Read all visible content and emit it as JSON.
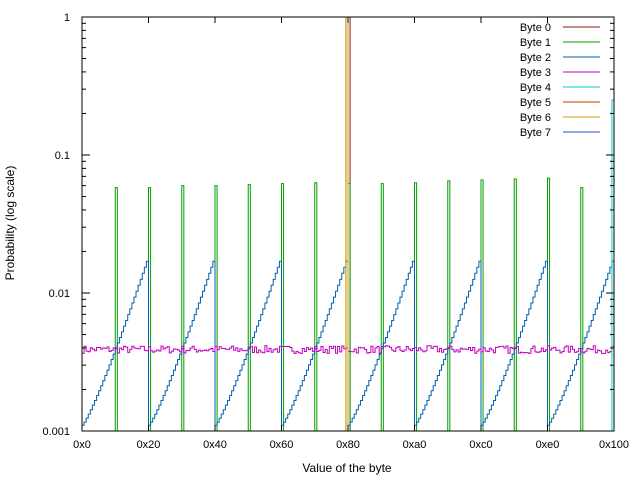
{
  "chart_data": {
    "type": "line",
    "step": true,
    "xlabel": "Value of the byte",
    "ylabel": "Probability (log scale)",
    "xlim": [
      0,
      256
    ],
    "ylim": [
      0.001,
      1
    ],
    "yscale": "log",
    "grid": false,
    "legend_position": "top-right",
    "x_ticks": [
      {
        "value": 0,
        "label": "0x0"
      },
      {
        "value": 32,
        "label": "0x20"
      },
      {
        "value": 64,
        "label": "0x40"
      },
      {
        "value": 96,
        "label": "0x60"
      },
      {
        "value": 128,
        "label": "0x80"
      },
      {
        "value": 160,
        "label": "0xa0"
      },
      {
        "value": 192,
        "label": "0xc0"
      },
      {
        "value": 224,
        "label": "0xe0"
      },
      {
        "value": 256,
        "label": "0x100"
      }
    ],
    "y_ticks": [
      {
        "value": 1,
        "label": "1"
      },
      {
        "value": 0.1,
        "label": "0.1"
      },
      {
        "value": 0.01,
        "label": "0.01"
      },
      {
        "value": 0.001,
        "label": "0.001"
      }
    ],
    "series": [
      {
        "name": "Byte 0",
        "color": "#8b1a0e",
        "description": "single spike",
        "spikes": [
          {
            "x": 128,
            "y": 1.0
          }
        ]
      },
      {
        "name": "Byte 1",
        "color": "#00a000",
        "description": "spikes every 0x10 starting at 0x10",
        "spikes": [
          {
            "x": 16,
            "y": 0.058
          },
          {
            "x": 32,
            "y": 0.058
          },
          {
            "x": 48,
            "y": 0.06
          },
          {
            "x": 64,
            "y": 0.06
          },
          {
            "x": 80,
            "y": 0.061
          },
          {
            "x": 96,
            "y": 0.062
          },
          {
            "x": 112,
            "y": 0.063
          },
          {
            "x": 128,
            "y": 0.062
          },
          {
            "x": 144,
            "y": 0.062
          },
          {
            "x": 160,
            "y": 0.063
          },
          {
            "x": 176,
            "y": 0.065
          },
          {
            "x": 192,
            "y": 0.066
          },
          {
            "x": 208,
            "y": 0.067
          },
          {
            "x": 224,
            "y": 0.068
          },
          {
            "x": 240,
            "y": 0.058
          }
        ]
      },
      {
        "name": "Byte 2",
        "color": "#0060ad",
        "description": "sawtooth: rises from ~0.0011 to ~0.017 across each 0x20 block",
        "period": 32,
        "ramp_min": 0.0011,
        "ramp_max": 0.017
      },
      {
        "name": "Byte 3",
        "color": "#c000c0",
        "description": "nearly uniform noise around 0.0039",
        "level": 0.0039,
        "noise": 0.00025
      },
      {
        "name": "Byte 4",
        "color": "#00d0d0",
        "description": "single spike at the last byte",
        "spikes": [
          {
            "x": 255,
            "y": 0.25
          }
        ]
      },
      {
        "name": "Byte 5",
        "color": "#c04000",
        "description": "single spike",
        "spikes": [
          {
            "x": 127,
            "y": 1.0
          }
        ]
      },
      {
        "name": "Byte 6",
        "color": "#d0a000",
        "description": "single spike",
        "spikes": [
          {
            "x": 127,
            "y": 1.0
          }
        ]
      },
      {
        "name": "Byte 7",
        "color": "#2050d0",
        "description": "",
        "spikes": []
      }
    ]
  }
}
